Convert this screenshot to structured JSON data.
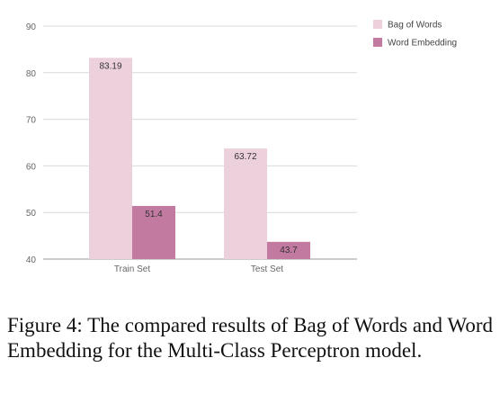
{
  "chart_data": {
    "type": "bar",
    "categories": [
      "Train Set",
      "Test Set"
    ],
    "series": [
      {
        "name": "Bag of Words",
        "values": [
          83.19,
          63.72
        ],
        "color": "#ecd0dc"
      },
      {
        "name": "Word Embedding",
        "values": [
          51.4,
          43.7
        ],
        "color": "#c27aa0"
      }
    ],
    "ylim": [
      40,
      90
    ],
    "yticks": [
      40,
      50,
      60,
      70,
      80,
      90
    ],
    "ytick_labels": [
      "40",
      "50",
      "60",
      "70",
      "80",
      "90"
    ],
    "data_labels": [
      [
        "83.19",
        "63.72"
      ],
      [
        "51.4",
        "43.7"
      ]
    ],
    "grid": true,
    "legend_position": "top-right",
    "title": "",
    "xlabel": "",
    "ylabel": ""
  },
  "caption": "Figure 4: The compared results of Bag of Words and Word Embedding for the Multi-Class Perceptron model."
}
